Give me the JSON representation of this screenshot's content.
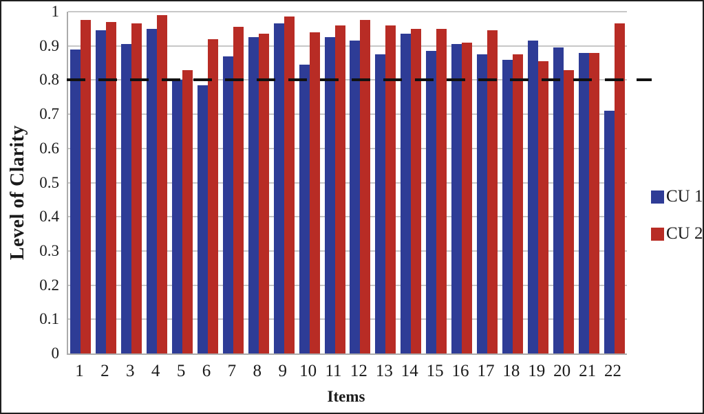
{
  "chart_data": {
    "type": "bar",
    "title": "",
    "xlabel": "Items",
    "ylabel": "Level of Clarity",
    "categories": [
      "1",
      "2",
      "3",
      "4",
      "5",
      "6",
      "7",
      "8",
      "9",
      "10",
      "11",
      "12",
      "13",
      "14",
      "15",
      "16",
      "17",
      "18",
      "19",
      "20",
      "21",
      "22"
    ],
    "series": [
      {
        "name": "CU 1",
        "color": "#2e3c96",
        "values": [
          0.89,
          0.945,
          0.905,
          0.95,
          0.8,
          0.785,
          0.87,
          0.925,
          0.965,
          0.845,
          0.925,
          0.915,
          0.875,
          0.935,
          0.885,
          0.905,
          0.875,
          0.86,
          0.915,
          0.895,
          0.88,
          0.71
        ]
      },
      {
        "name": "CU 2",
        "color": "#b82c25",
        "values": [
          0.975,
          0.97,
          0.965,
          0.99,
          0.83,
          0.92,
          0.955,
          0.935,
          0.985,
          0.94,
          0.96,
          0.975,
          0.96,
          0.95,
          0.95,
          0.91,
          0.945,
          0.875,
          0.855,
          0.83,
          0.88,
          0.965
        ]
      }
    ],
    "ylim": [
      0,
      1
    ],
    "ytick_step": 0.1,
    "ytick_labels_bottom_to_top": [
      "0",
      "0.1",
      "0.2",
      "0.3",
      "0.4",
      "0.5",
      "0.6",
      "0.7",
      "0.8",
      "0.9",
      "1"
    ],
    "reference_line": {
      "value": 0.8,
      "style": "dashed",
      "color": "#111111"
    },
    "legend_position": "right",
    "grid": true,
    "gridline_color": "#c7c7c7",
    "axis_color": "#ababab"
  }
}
